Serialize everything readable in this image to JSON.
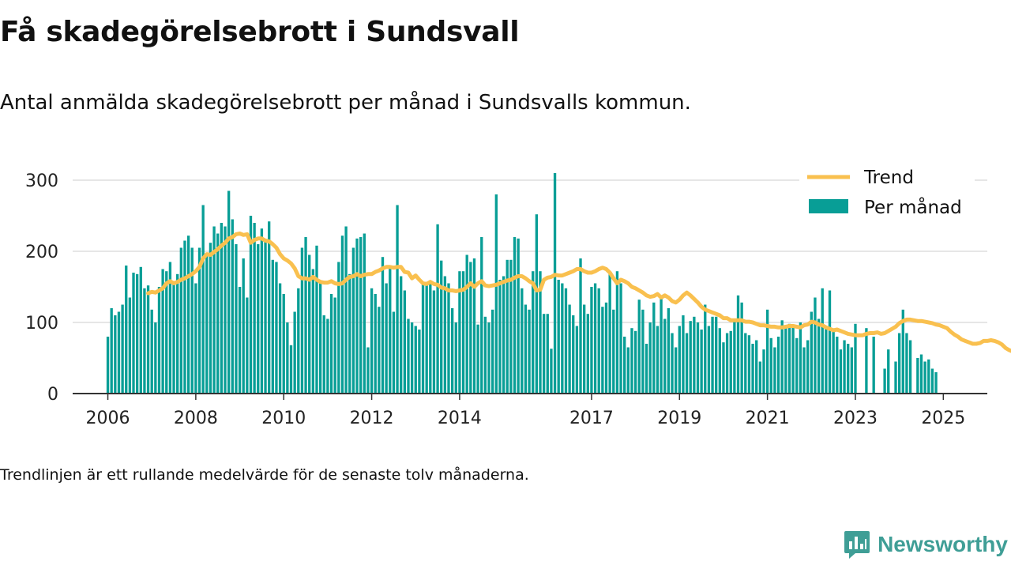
{
  "header": {
    "title": "Få skadegörelsebrott i Sundsvall",
    "subtitle": "Antal anmälda skadegörelsebrott per månad i Sundsvalls kommun."
  },
  "footer": {
    "note": "Trendlinjen är ett rullande medelvärde för de senaste tolv månaderna.",
    "brand": "Newsworthy"
  },
  "colors": {
    "bars": "#089e96",
    "trend": "#f9c04f",
    "grid": "#dddddd",
    "axis": "#333333",
    "brand": "#3f9e96"
  },
  "chart_data": {
    "type": "bar",
    "x_unit": "month",
    "x_start": "2006-01",
    "x_end": "2025-02",
    "xlim": [
      2005.2,
      2026.0
    ],
    "ylim": [
      0,
      320
    ],
    "y_ticks": [
      0,
      100,
      200,
      300
    ],
    "y_tick_labels": [
      "0",
      "100",
      "200",
      "300"
    ],
    "x_ticks": [
      2006,
      2008,
      2010,
      2012,
      2014,
      2017,
      2019,
      2021,
      2023,
      2025
    ],
    "x_tick_labels": [
      "2006",
      "2008",
      "2010",
      "2012",
      "2014",
      "2017",
      "2019",
      "2021",
      "2023",
      "2025"
    ],
    "grid": "horizontal",
    "legend": {
      "position": "top-right",
      "entries": [
        "Trend",
        "Per månad"
      ]
    },
    "series": [
      {
        "name": "Per månad",
        "type": "bar",
        "values": [
          80,
          120,
          110,
          115,
          125,
          180,
          135,
          170,
          168,
          178,
          148,
          152,
          118,
          100,
          150,
          175,
          172,
          185,
          155,
          168,
          205,
          215,
          222,
          205,
          155,
          205,
          265,
          195,
          212,
          235,
          225,
          240,
          235,
          285,
          245,
          210,
          150,
          190,
          135,
          250,
          240,
          210,
          232,
          215,
          242,
          188,
          185,
          155,
          140,
          100,
          68,
          115,
          148,
          205,
          220,
          195,
          175,
          208,
          155,
          110,
          105,
          140,
          135,
          185,
          222,
          235,
          168,
          205,
          218,
          220,
          225,
          65,
          148,
          140,
          122,
          192,
          155,
          178,
          115,
          265,
          165,
          145,
          105,
          100,
          95,
          90,
          155,
          157,
          158,
          145,
          238,
          187,
          165,
          155,
          120,
          100,
          172,
          172,
          195,
          185,
          190,
          97,
          220,
          108,
          100,
          118,
          280,
          160,
          165,
          188,
          188,
          220,
          218,
          148,
          125,
          118,
          172,
          252,
          172,
          112,
          112,
          63,
          310,
          160,
          155,
          148,
          125,
          110,
          95,
          190,
          125,
          112,
          150,
          155,
          148,
          122,
          128,
          168,
          118,
          172,
          155,
          80,
          65,
          92,
          88,
          132,
          118,
          70,
          100,
          128,
          95,
          138,
          105,
          120,
          85,
          65,
          95,
          110,
          85,
          102,
          108,
          100,
          90,
          125,
          95,
          108,
          108,
          92,
          72,
          85,
          88,
          105,
          138,
          128,
          85,
          82,
          70,
          75,
          45,
          62,
          118,
          78,
          65,
          80,
          103,
          92,
          98,
          96,
          78,
          100,
          65,
          75,
          115,
          135,
          105,
          148,
          95,
          145,
          88,
          80,
          62,
          75,
          70,
          65,
          98,
          0,
          0,
          92,
          0,
          80,
          0,
          0,
          35,
          62,
          0,
          45,
          85,
          118,
          85,
          75,
          0,
          50,
          55,
          45,
          48,
          35,
          30
        ]
      },
      {
        "name": "Trend",
        "type": "line",
        "start": "2006-12",
        "values": [
          141,
          143,
          142,
          145,
          148,
          155,
          158,
          155,
          157,
          160,
          162,
          165,
          168,
          172,
          178,
          190,
          196,
          195,
          199,
          203,
          208,
          212,
          218,
          220,
          224,
          225,
          223,
          224,
          212,
          216,
          218,
          218,
          215,
          214,
          210,
          205,
          196,
          190,
          187,
          183,
          176,
          165,
          162,
          162,
          160,
          164,
          160,
          157,
          156,
          156,
          158,
          155,
          154,
          155,
          160,
          164,
          165,
          168,
          165,
          167,
          168,
          168,
          171,
          173,
          176,
          178,
          178,
          177,
          178,
          178,
          171,
          170,
          162,
          166,
          160,
          155,
          154,
          157,
          154,
          153,
          149,
          148,
          145,
          145,
          144,
          145,
          146,
          150,
          155,
          150,
          155,
          158,
          152,
          151,
          152,
          153,
          155,
          157,
          159,
          160,
          163,
          165,
          165,
          162,
          158,
          155,
          145,
          146,
          160,
          163,
          164,
          167,
          166,
          166,
          168,
          170,
          172,
          175,
          175,
          172,
          170,
          170,
          172,
          175,
          177,
          175,
          170,
          162,
          155,
          160,
          158,
          155,
          150,
          148,
          145,
          142,
          138,
          136,
          137,
          140,
          135,
          138,
          135,
          130,
          128,
          132,
          138,
          142,
          138,
          133,
          128,
          122,
          118,
          116,
          114,
          112,
          110,
          106,
          106,
          103,
          103,
          103,
          103,
          101,
          101,
          100,
          98,
          96,
          96,
          95,
          94,
          94,
          93,
          93,
          94,
          95,
          95,
          94,
          93,
          96,
          97,
          101,
          100,
          97,
          96,
          93,
          91,
          89,
          90,
          88,
          86,
          84,
          83,
          82,
          82,
          82,
          84,
          85,
          85,
          86,
          84,
          85,
          88,
          91,
          94,
          99,
          102,
          104,
          104,
          103,
          102,
          102,
          101,
          100,
          99,
          97,
          96,
          94,
          92,
          87,
          83,
          80,
          76,
          74,
          72,
          70,
          70,
          71,
          74,
          74,
          75,
          74,
          72,
          69,
          64,
          61,
          59,
          59
        ]
      }
    ]
  }
}
